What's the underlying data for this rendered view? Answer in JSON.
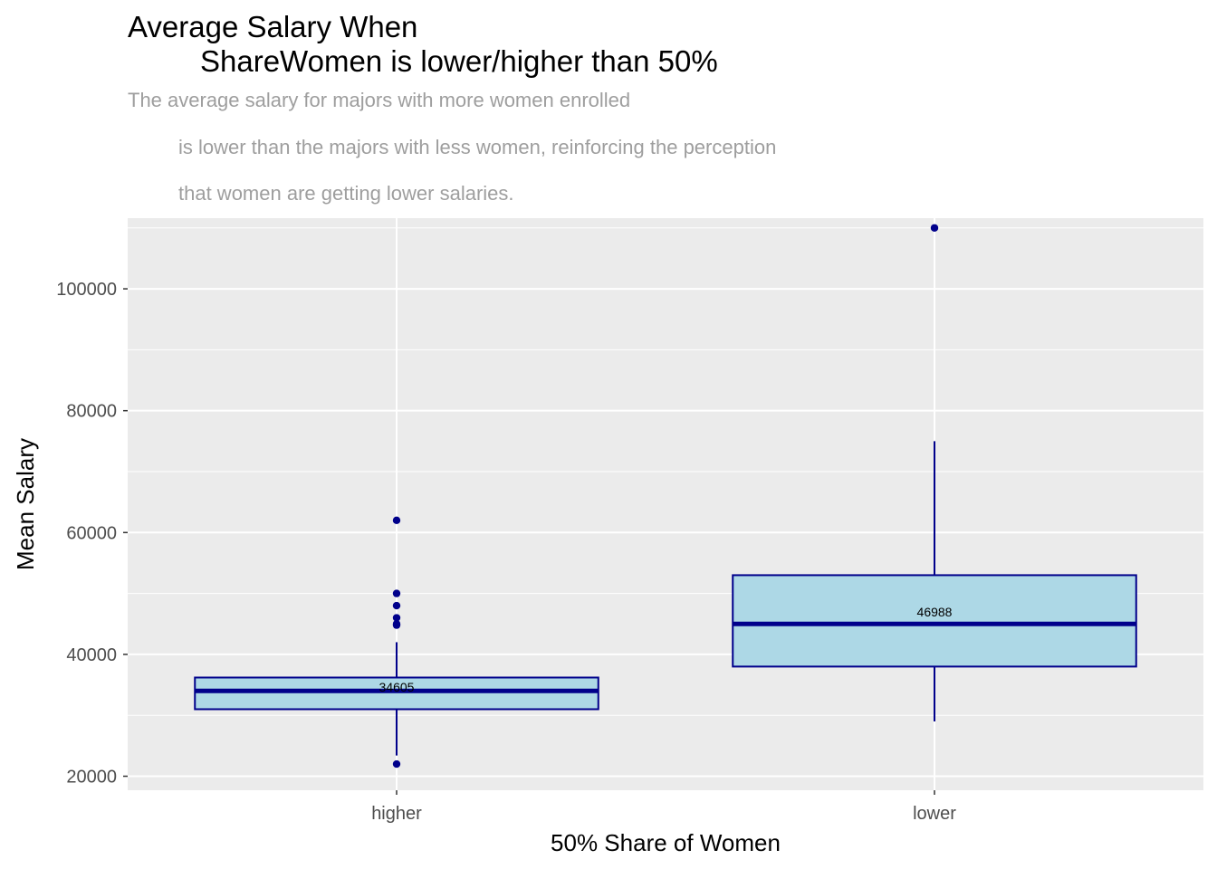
{
  "chart_data": {
    "type": "boxplot",
    "title": [
      "Average Salary When",
      "ShareWomen is lower/higher than 50%"
    ],
    "subtitle": [
      "The average salary for majors with more women enrolled",
      "is lower than the majors with less women, reinforcing the perception",
      "that women are getting lower salaries."
    ],
    "xlabel": "50% Share of Women",
    "ylabel": "Mean Salary",
    "categories": [
      "higher",
      "lower"
    ],
    "ylim": [
      17700,
      111600
    ],
    "y_ticks": [
      20000,
      40000,
      60000,
      80000,
      100000
    ],
    "y_tick_labels": [
      "20000",
      "40000",
      "60000",
      "80000",
      "100000"
    ],
    "grid": true,
    "boxes": [
      {
        "category": "higher",
        "whisker_low": 23400,
        "q1": 31000,
        "median": 34000,
        "q3": 36200,
        "whisker_high": 42000,
        "outliers": [
          22000,
          44800,
          45000,
          46000,
          48000,
          50000,
          62000
        ],
        "mean": 34605,
        "mean_label": "34605"
      },
      {
        "category": "lower",
        "whisker_low": 29000,
        "q1": 38000,
        "median": 45000,
        "q3": 53000,
        "whisker_high": 75000,
        "outliers": [
          110000
        ],
        "mean": 46988,
        "mean_label": "46988"
      }
    ],
    "colors": {
      "panel": "#ebebeb",
      "grid": "#ffffff",
      "box_fill": "#add8e6",
      "box_line": "#00008b",
      "outlier": "#00008b"
    }
  }
}
